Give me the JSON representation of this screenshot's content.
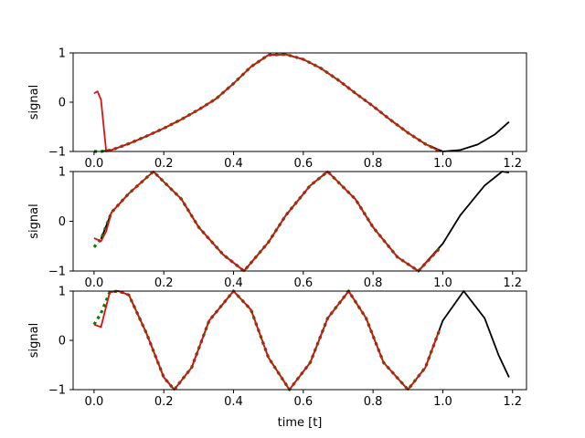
{
  "chart_data": [
    {
      "type": "line",
      "xlabel": "",
      "ylabel": "signal",
      "xlim": [
        -0.06,
        1.24
      ],
      "ylim": [
        -1,
        1
      ],
      "xticks": [
        "0.0",
        "0.2",
        "0.4",
        "0.6",
        "0.8",
        "1.0",
        "1.2"
      ],
      "yticks": [
        "-1",
        "0",
        "1"
      ],
      "grid": false,
      "series": [
        {
          "color": "#000000",
          "style": "solid",
          "x": [
            0.02,
            0.05,
            0.1,
            0.15,
            0.2,
            0.25,
            0.3,
            0.35,
            0.4,
            0.45,
            0.5,
            0.55,
            0.6,
            0.65,
            0.7,
            0.75,
            0.8,
            0.85,
            0.9,
            0.95,
            1.0,
            1.05,
            1.1,
            1.15,
            1.19
          ],
          "y": [
            -1.0,
            -0.97,
            -0.84,
            -0.69,
            -0.53,
            -0.35,
            -0.15,
            0.07,
            0.38,
            0.72,
            0.96,
            0.97,
            0.87,
            0.69,
            0.45,
            0.18,
            -0.08,
            -0.36,
            -0.62,
            -0.85,
            -1.0,
            -0.97,
            -0.86,
            -0.65,
            -0.4
          ]
        },
        {
          "color": "#008000",
          "style": "dotted",
          "x": [
            0.0,
            0.02,
            0.05,
            0.1,
            0.15,
            0.2,
            0.25,
            0.3,
            0.35,
            0.4,
            0.45,
            0.5,
            0.55,
            0.6,
            0.65,
            0.7,
            0.75,
            0.8,
            0.85,
            0.9,
            0.95,
            0.99
          ],
          "y": [
            -1.0,
            -1.0,
            -0.97,
            -0.84,
            -0.69,
            -0.53,
            -0.35,
            -0.15,
            0.07,
            0.38,
            0.72,
            0.96,
            0.97,
            0.87,
            0.69,
            0.45,
            0.18,
            -0.08,
            -0.36,
            -0.62,
            -0.85,
            -0.99
          ]
        },
        {
          "color": "#dd1111",
          "style": "solid",
          "x": [
            0.0,
            0.01,
            0.02,
            0.035,
            0.05,
            0.1,
            0.15,
            0.2,
            0.25,
            0.3,
            0.35,
            0.4,
            0.45,
            0.5,
            0.55,
            0.6,
            0.65,
            0.7,
            0.75,
            0.8,
            0.85,
            0.9,
            0.95,
            0.99
          ],
          "y": [
            0.18,
            0.22,
            0.05,
            -1.0,
            -0.97,
            -0.84,
            -0.69,
            -0.53,
            -0.35,
            -0.15,
            0.07,
            0.38,
            0.72,
            0.96,
            0.97,
            0.87,
            0.69,
            0.45,
            0.18,
            -0.08,
            -0.36,
            -0.62,
            -0.85,
            -0.99
          ]
        }
      ]
    },
    {
      "type": "line",
      "xlabel": "",
      "ylabel": "signal",
      "xlim": [
        -0.06,
        1.24
      ],
      "ylim": [
        -1,
        1
      ],
      "xticks": [
        "0.0",
        "0.2",
        "0.4",
        "0.6",
        "0.8",
        "1.0",
        "1.2"
      ],
      "yticks": [
        "-1",
        "0",
        "1"
      ],
      "grid": false,
      "series": [
        {
          "color": "#000000",
          "style": "solid",
          "x": [
            0.02,
            0.05,
            0.1,
            0.17,
            0.25,
            0.3,
            0.37,
            0.43,
            0.5,
            0.55,
            0.62,
            0.67,
            0.75,
            0.8,
            0.87,
            0.93,
            1.0,
            1.05,
            1.12,
            1.17,
            1.19
          ],
          "y": [
            -0.36,
            0.18,
            0.56,
            1.0,
            0.45,
            -0.12,
            -0.67,
            -1.0,
            -0.42,
            0.12,
            0.72,
            1.0,
            0.44,
            -0.12,
            -0.72,
            -1.0,
            -0.45,
            0.12,
            0.72,
            1.0,
            0.98
          ]
        },
        {
          "color": "#008000",
          "style": "dotted",
          "x": [
            0.0,
            0.02,
            0.05,
            0.1,
            0.17,
            0.25,
            0.3,
            0.37,
            0.43,
            0.5,
            0.55,
            0.62,
            0.67,
            0.75,
            0.8,
            0.87,
            0.93,
            0.99
          ],
          "y": [
            -0.52,
            -0.36,
            0.18,
            0.56,
            1.0,
            0.45,
            -0.12,
            -0.67,
            -1.0,
            -0.42,
            0.12,
            0.72,
            1.0,
            0.44,
            -0.12,
            -0.72,
            -1.0,
            -0.55
          ]
        },
        {
          "color": "#dd1111",
          "style": "solid",
          "x": [
            0.0,
            0.02,
            0.035,
            0.05,
            0.1,
            0.17,
            0.25,
            0.3,
            0.37,
            0.43,
            0.5,
            0.55,
            0.62,
            0.67,
            0.75,
            0.8,
            0.87,
            0.93,
            0.99
          ],
          "y": [
            -0.34,
            -0.4,
            -0.2,
            0.18,
            0.56,
            1.0,
            0.45,
            -0.12,
            -0.67,
            -1.0,
            -0.42,
            0.12,
            0.72,
            1.0,
            0.44,
            -0.12,
            -0.72,
            -1.0,
            -0.55
          ]
        }
      ]
    },
    {
      "type": "line",
      "xlabel": "time [t]",
      "ylabel": "signal",
      "xlim": [
        -0.06,
        1.24
      ],
      "ylim": [
        -1,
        1
      ],
      "xticks": [
        "0.0",
        "0.2",
        "0.4",
        "0.6",
        "0.8",
        "1.0",
        "1.2"
      ],
      "yticks": [
        "-1",
        "0",
        "1"
      ],
      "grid": false,
      "series": [
        {
          "color": "#000000",
          "style": "solid",
          "x": [
            0.045,
            0.07,
            0.1,
            0.15,
            0.2,
            0.23,
            0.28,
            0.33,
            0.4,
            0.45,
            0.5,
            0.56,
            0.62,
            0.67,
            0.73,
            0.78,
            0.83,
            0.9,
            0.95,
            1.0,
            1.06,
            1.12,
            1.16,
            1.19
          ],
          "y": [
            0.98,
            1.0,
            0.92,
            0.15,
            -0.75,
            -1.0,
            -0.55,
            0.4,
            1.0,
            0.62,
            -0.35,
            -1.0,
            -0.45,
            0.45,
            1.0,
            0.45,
            -0.45,
            -1.0,
            -0.55,
            0.4,
            1.0,
            0.45,
            -0.3,
            -0.75
          ]
        },
        {
          "color": "#008000",
          "style": "dotted",
          "x": [
            0.0,
            0.02,
            0.045,
            0.07,
            0.1,
            0.15,
            0.2,
            0.23,
            0.28,
            0.33,
            0.4,
            0.45,
            0.5,
            0.56,
            0.62,
            0.67,
            0.73,
            0.78,
            0.83,
            0.9,
            0.95,
            0.99
          ],
          "y": [
            0.32,
            0.55,
            0.98,
            1.0,
            0.92,
            0.15,
            -0.75,
            -1.0,
            -0.55,
            0.4,
            1.0,
            0.62,
            -0.35,
            -1.0,
            -0.45,
            0.45,
            1.0,
            0.45,
            -0.45,
            -1.0,
            -0.55,
            0.2
          ]
        },
        {
          "color": "#dd1111",
          "style": "solid",
          "x": [
            0.0,
            0.02,
            0.045,
            0.07,
            0.1,
            0.15,
            0.2,
            0.23,
            0.28,
            0.33,
            0.4,
            0.45,
            0.5,
            0.56,
            0.62,
            0.67,
            0.73,
            0.78,
            0.83,
            0.9,
            0.95,
            0.99
          ],
          "y": [
            0.32,
            0.27,
            0.98,
            1.0,
            0.92,
            0.15,
            -0.75,
            -1.0,
            -0.55,
            0.4,
            1.0,
            0.62,
            -0.35,
            -1.0,
            -0.45,
            0.45,
            1.0,
            0.45,
            -0.45,
            -1.0,
            -0.55,
            0.2
          ]
        }
      ]
    }
  ]
}
